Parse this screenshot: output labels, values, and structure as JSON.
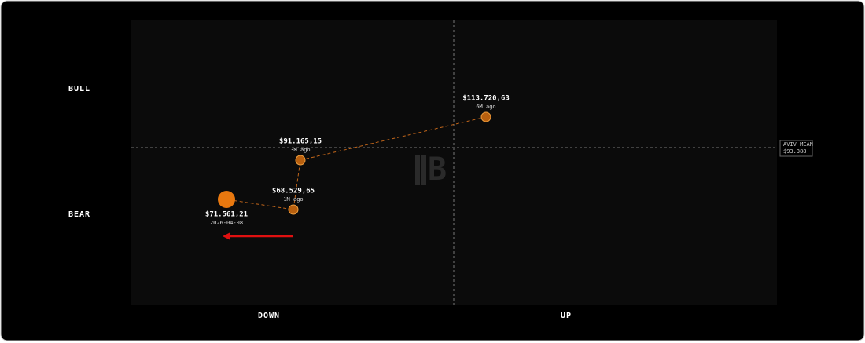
{
  "labels": {
    "bull": "BULL",
    "bear": "BEAR",
    "down": "DOWN",
    "up": "UP"
  },
  "mean": {
    "label": "AVIV MEAN",
    "value": "$93.388"
  },
  "points": [
    {
      "price": "$113.720,63",
      "when": "6M ago"
    },
    {
      "price": "$91.165,15",
      "when": "3M ago"
    },
    {
      "price": "$68.529,65",
      "when": "1M ago"
    },
    {
      "price": "$71.561,21",
      "when": "2026-04-08"
    }
  ]
}
